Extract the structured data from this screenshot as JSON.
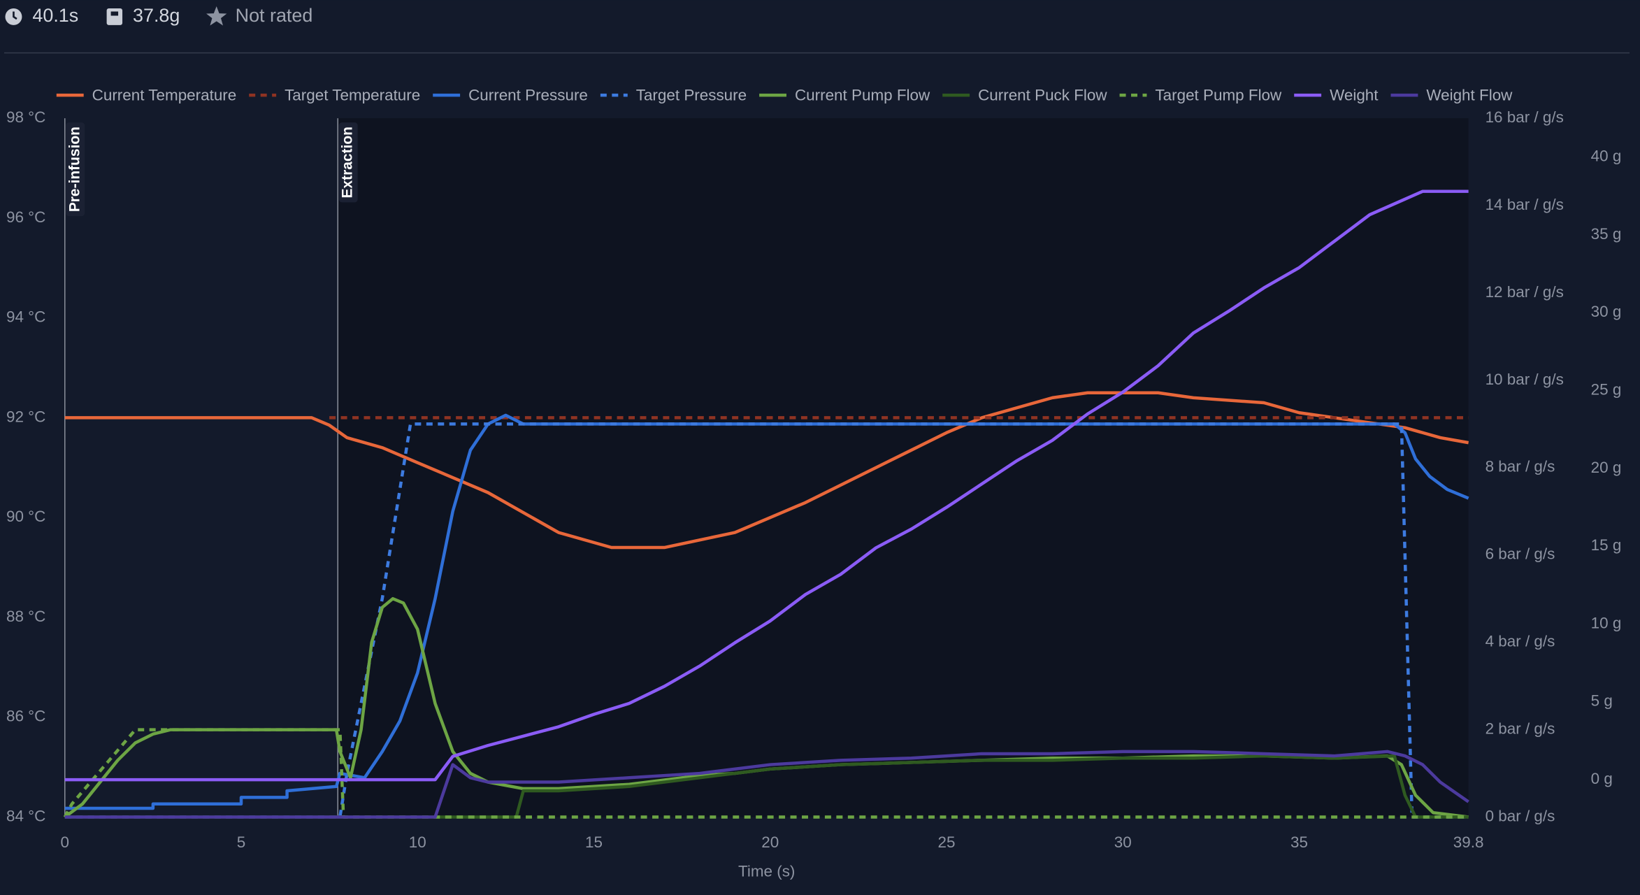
{
  "header": {
    "time": "40.1s",
    "weight": "37.8g",
    "rating": "Not rated"
  },
  "chart_data": {
    "type": "line",
    "x_label": "Time (s)",
    "xlim": [
      0,
      39.8
    ],
    "xticks": [
      0,
      5,
      10,
      15,
      20,
      25,
      30,
      35,
      39.8
    ],
    "ylim": [
      84,
      98
    ],
    "yticks": [
      {
        "value": 84,
        "label": "84 °C"
      },
      {
        "value": 86,
        "label": "86 °C"
      },
      {
        "value": 88,
        "label": "88 °C"
      },
      {
        "value": 90,
        "label": "90 °C"
      },
      {
        "value": 92,
        "label": "92 °C"
      },
      {
        "value": 94,
        "label": "94 °C"
      },
      {
        "value": 96,
        "label": "96 °C"
      },
      {
        "value": 98,
        "label": "98 °C"
      }
    ],
    "y2lim": [
      0,
      16
    ],
    "y2ticks": [
      {
        "value": 0,
        "label": "0 bar / g/s"
      },
      {
        "value": 2,
        "label": "2 bar / g/s"
      },
      {
        "value": 4,
        "label": "4 bar / g/s"
      },
      {
        "value": 6,
        "label": "6 bar / g/s"
      },
      {
        "value": 8,
        "label": "8 bar / g/s"
      },
      {
        "value": 10,
        "label": "10 bar / g/s"
      },
      {
        "value": 12,
        "label": "12 bar / g/s"
      },
      {
        "value": 14,
        "label": "14 bar / g/s"
      },
      {
        "value": 16,
        "label": "16 bar / g/s"
      }
    ],
    "y3lim": [
      -2.4,
      42.5
    ],
    "y3ticks": [
      {
        "value": 0,
        "label": "0 g"
      },
      {
        "value": 5,
        "label": "5 g"
      },
      {
        "value": 10,
        "label": "10 g"
      },
      {
        "value": 15,
        "label": "15 g"
      },
      {
        "value": 20,
        "label": "20 g"
      },
      {
        "value": 25,
        "label": "25 g"
      },
      {
        "value": 30,
        "label": "30 g"
      },
      {
        "value": 35,
        "label": "35 g"
      },
      {
        "value": 40,
        "label": "40 g"
      }
    ],
    "phases": [
      {
        "label": "Pre-infusion",
        "x": 0
      },
      {
        "label": "Extraction",
        "x": 7.74
      }
    ],
    "series": [
      {
        "name": "Current Temperature",
        "color": "#e8673a",
        "dash": false,
        "axis": "y",
        "x": [
          0,
          7,
          7.5,
          8,
          9,
          10,
          11,
          12,
          13,
          14,
          15,
          15.5,
          17,
          18,
          19,
          20,
          21,
          22,
          23,
          24,
          25,
          26,
          27,
          28,
          29,
          31,
          32,
          34,
          35,
          36,
          37,
          38,
          39,
          39.8
        ],
        "values": [
          92,
          92,
          91.85,
          91.6,
          91.4,
          91.1,
          90.8,
          90.5,
          90.1,
          89.7,
          89.5,
          89.4,
          89.4,
          89.55,
          89.7,
          90,
          90.3,
          90.65,
          91,
          91.35,
          91.7,
          92,
          92.2,
          92.4,
          92.5,
          92.5,
          92.4,
          92.3,
          92.1,
          92,
          91.9,
          91.8,
          91.6,
          91.5
        ]
      },
      {
        "name": "Target Temperature",
        "color": "#8f3322",
        "dash": true,
        "axis": "y",
        "x": [
          7.5,
          39.8
        ],
        "values": [
          92,
          92
        ]
      },
      {
        "name": "Current Pressure",
        "color": "#2f6fd8",
        "dash": false,
        "axis": "y2",
        "x": [
          0,
          2.5,
          2.5,
          5,
          5,
          6.3,
          6.3,
          7.7,
          7.8,
          8.5,
          9,
          9.5,
          10,
          10.5,
          11,
          11.5,
          12,
          12.5,
          13,
          37.7,
          38,
          38.3,
          38.7,
          39.2,
          39.8
        ],
        "values": [
          0.2,
          0.2,
          0.3,
          0.3,
          0.45,
          0.45,
          0.6,
          0.7,
          1,
          0.9,
          1.5,
          2.2,
          3.3,
          5,
          7,
          8.4,
          9,
          9.2,
          9,
          9,
          8.8,
          8.2,
          7.8,
          7.5,
          7.3
        ]
      },
      {
        "name": "Target Pressure",
        "color": "#3d7be0",
        "dash": true,
        "axis": "y2",
        "x": [
          0,
          7.8,
          8,
          9,
          9.8,
          37.9,
          38.2,
          39.8
        ],
        "values": [
          0,
          0,
          1,
          5,
          9,
          9,
          0,
          0
        ]
      },
      {
        "name": "Current Pump Flow",
        "color": "#6da544",
        "dash": false,
        "axis": "y2",
        "x": [
          0,
          0.5,
          1,
          1.5,
          2,
          2.5,
          3,
          7.7,
          7.8,
          8.1,
          8.4,
          8.7,
          9,
          9.3,
          9.6,
          10,
          10.5,
          11,
          11.5,
          12,
          13,
          14,
          15,
          16,
          17,
          18,
          19,
          20,
          22,
          24,
          26,
          28,
          30,
          32,
          34,
          36,
          37.5,
          37.9,
          38.3,
          38.8,
          39.8
        ],
        "values": [
          0,
          0.3,
          0.8,
          1.3,
          1.7,
          1.9,
          2,
          2,
          1.5,
          0.9,
          2,
          4,
          4.8,
          5,
          4.9,
          4.3,
          2.6,
          1.5,
          1,
          0.8,
          0.65,
          0.65,
          0.7,
          0.75,
          0.85,
          0.95,
          1,
          1.1,
          1.2,
          1.25,
          1.3,
          1.35,
          1.35,
          1.4,
          1.4,
          1.35,
          1.4,
          1.2,
          0.5,
          0.1,
          0
        ]
      },
      {
        "name": "Current Puck Flow",
        "color": "#2f5a20",
        "dash": false,
        "axis": "y2",
        "x": [
          0,
          12.8,
          13,
          14,
          16,
          18,
          20,
          22,
          24,
          26,
          28,
          30,
          32,
          34,
          36,
          37.7,
          38,
          38.3,
          39.8
        ],
        "values": [
          0,
          0,
          0.6,
          0.6,
          0.7,
          0.9,
          1.1,
          1.2,
          1.25,
          1.3,
          1.3,
          1.35,
          1.35,
          1.4,
          1.35,
          1.4,
          0.5,
          0,
          0
        ]
      },
      {
        "name": "Target Pump Flow",
        "color": "#6da544",
        "dash": true,
        "axis": "y2",
        "x": [
          0,
          0.2,
          2,
          7.8,
          7.9,
          39.8
        ],
        "values": [
          0,
          0.3,
          2,
          2,
          0,
          0
        ]
      },
      {
        "name": "Weight",
        "color": "#8b5cf6",
        "dash": false,
        "axis": "y3",
        "x": [
          0,
          10.5,
          11,
          12,
          13,
          14,
          15,
          16,
          17,
          18,
          19,
          20,
          21,
          22,
          23,
          24,
          25,
          26,
          27,
          28,
          29,
          30,
          31,
          32,
          33,
          34,
          35,
          36,
          37,
          38,
          38.5,
          39.8
        ],
        "values": [
          0,
          0,
          1.5,
          2.2,
          2.8,
          3.4,
          4.2,
          4.9,
          6,
          7.3,
          8.8,
          10.2,
          11.9,
          13.2,
          14.9,
          16.1,
          17.5,
          19,
          20.5,
          21.8,
          23.5,
          24.9,
          26.6,
          28.7,
          30.1,
          31.6,
          32.9,
          34.6,
          36.3,
          37.3,
          37.8,
          37.8
        ]
      },
      {
        "name": "Weight Flow",
        "color": "#4c3a9e",
        "dash": false,
        "axis": "y2",
        "x": [
          0,
          10.5,
          11,
          11.5,
          12,
          14,
          16,
          18,
          20,
          22,
          24,
          26,
          28,
          30,
          32,
          34,
          36,
          37.5,
          38,
          38.5,
          39,
          39.8
        ],
        "values": [
          0,
          0,
          1.2,
          0.9,
          0.8,
          0.8,
          0.9,
          1,
          1.2,
          1.3,
          1.35,
          1.45,
          1.45,
          1.5,
          1.5,
          1.45,
          1.4,
          1.5,
          1.4,
          1.2,
          0.8,
          0.35
        ]
      }
    ]
  }
}
